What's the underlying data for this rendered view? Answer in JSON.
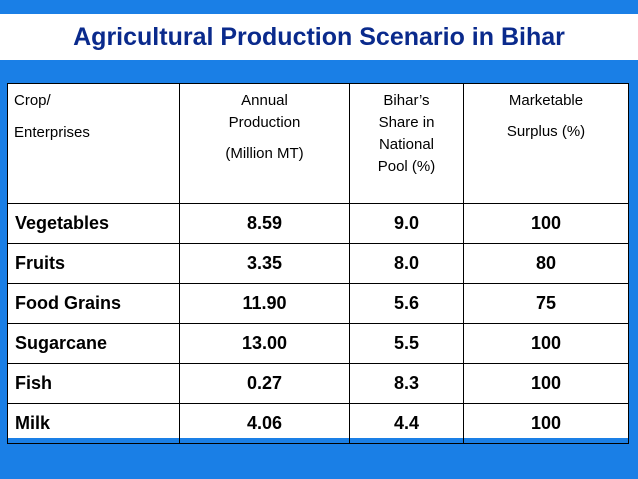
{
  "slide": {
    "title": "Agricultural Production Scenario in Bihar"
  },
  "table": {
    "headers": {
      "crop": [
        "Crop/",
        "Enterprises"
      ],
      "production": [
        "Annual",
        "Production",
        "(Million MT)"
      ],
      "share": [
        "Bihar’s",
        "Share in",
        "National",
        "Pool (%)"
      ],
      "surplus": [
        "Marketable",
        "Surplus (%)"
      ]
    },
    "rows": [
      {
        "crop": "Vegetables",
        "production": "8.59",
        "share": "9.0",
        "surplus": "100"
      },
      {
        "crop": "Fruits",
        "production": "3.35",
        "share": "8.0",
        "surplus": "80"
      },
      {
        "crop": "Food Grains",
        "production": "11.90",
        "share": "5.6",
        "surplus": "75"
      },
      {
        "crop": "Sugarcane",
        "production": "13.00",
        "share": "5.5",
        "surplus": "100"
      },
      {
        "crop": "Fish",
        "production": "0.27",
        "share": "8.3",
        "surplus": "100"
      },
      {
        "crop": "Milk",
        "production": "4.06",
        "share": "4.4",
        "surplus": "100"
      }
    ]
  },
  "colors": {
    "background": "#1a7fe6",
    "title_text": "#0a2a8c",
    "table_bg": "#ffffff"
  }
}
